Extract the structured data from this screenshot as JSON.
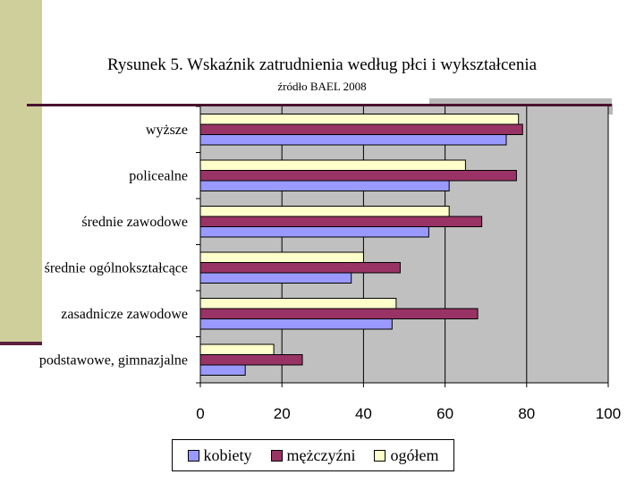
{
  "chart_data": {
    "type": "bar",
    "orientation": "horizontal",
    "title": "Rysunek 5. Wskaźnik zatrudnienia według płci i wykształcenia",
    "subtitle": "źródło BAEL 2008",
    "categories": [
      "wyższe",
      "policealne",
      "średnie zawodowe",
      "średnie ogólnokształcące",
      "zasadnicze zawodowe",
      "podstawowe, gimnazjalne"
    ],
    "series": [
      {
        "name": "kobiety",
        "color": "#9999ff",
        "values": [
          75,
          61,
          56,
          37,
          47,
          11
        ]
      },
      {
        "name": "mężczyźni",
        "color": "#993366",
        "values": [
          79,
          77.5,
          69,
          49,
          68,
          25
        ]
      },
      {
        "name": "ogółem",
        "color": "#ffffcc",
        "values": [
          78,
          65,
          61,
          40,
          48,
          18
        ]
      }
    ],
    "xlim": [
      0,
      100
    ],
    "xticks": [
      0,
      20,
      40,
      60,
      80,
      100
    ],
    "grid": true,
    "plot_background": "#c0c0c0",
    "legend_position": "bottom"
  }
}
